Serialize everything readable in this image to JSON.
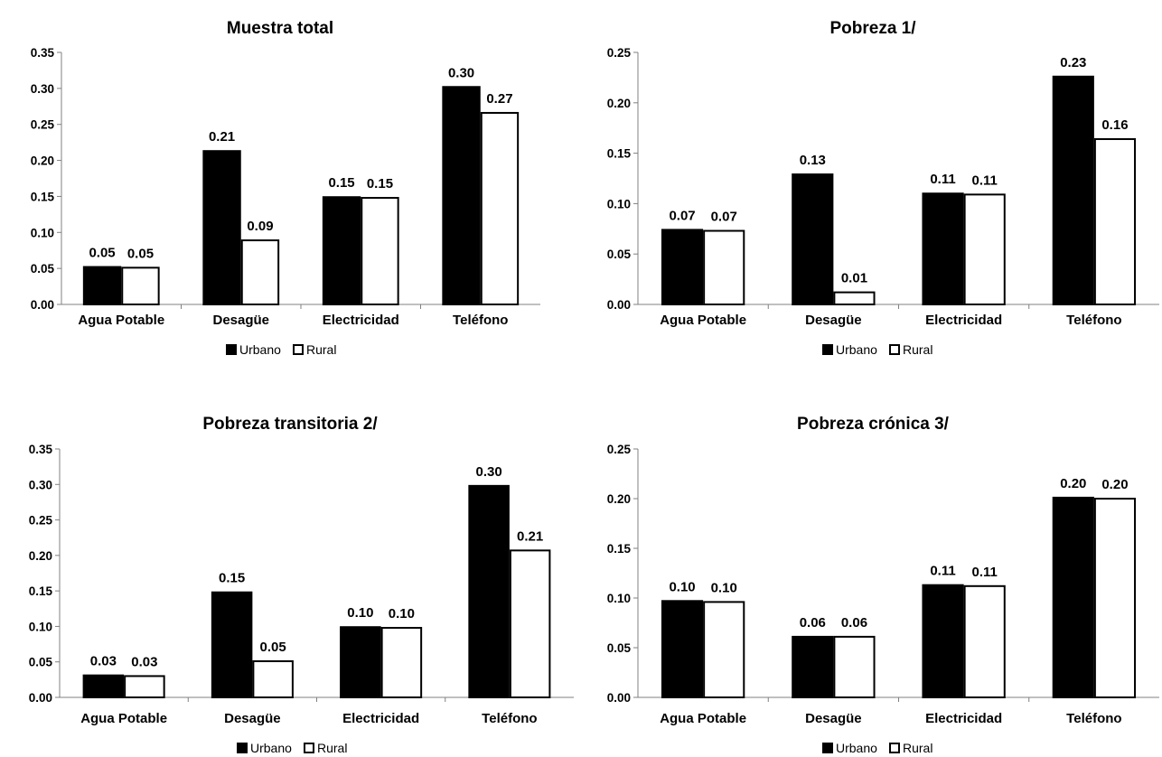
{
  "chart_data": [
    {
      "type": "bar",
      "title": "Muestra total",
      "categories": [
        "Agua Potable",
        "Desagüe",
        "Electricidad",
        "Teléfono"
      ],
      "series": [
        {
          "name": "Urbano",
          "values": [
            0.052,
            0.213,
            0.149,
            0.302
          ],
          "labels": [
            "0.05",
            "0.21",
            "0.15",
            "0.30"
          ]
        },
        {
          "name": "Rural",
          "values": [
            0.051,
            0.089,
            0.148,
            0.266
          ],
          "labels": [
            "0.05",
            "0.09",
            "0.15",
            "0.27"
          ]
        }
      ],
      "ylim": [
        0,
        0.35
      ],
      "yticks": [
        "0.00",
        "0.05",
        "0.10",
        "0.15",
        "0.20",
        "0.25",
        "0.30",
        "0.35"
      ],
      "legend_position": "bottom"
    },
    {
      "type": "bar",
      "title": "Pobreza 1/",
      "categories": [
        "Agua Potable",
        "Desagüe",
        "Electricidad",
        "Teléfono"
      ],
      "series": [
        {
          "name": "Urbano",
          "values": [
            0.074,
            0.129,
            0.11,
            0.226
          ],
          "labels": [
            "0.07",
            "0.13",
            "0.11",
            "0.23"
          ]
        },
        {
          "name": "Rural",
          "values": [
            0.073,
            0.012,
            0.109,
            0.164
          ],
          "labels": [
            "0.07",
            "0.01",
            "0.11",
            "0.16"
          ]
        }
      ],
      "ylim": [
        0,
        0.25
      ],
      "yticks": [
        "0.00",
        "0.05",
        "0.10",
        "0.15",
        "0.20",
        "0.25"
      ],
      "legend_position": "bottom"
    },
    {
      "type": "bar",
      "title": "Pobreza transitoria 2/",
      "categories": [
        "Agua Potable",
        "Desagüe",
        "Electricidad",
        "Teléfono"
      ],
      "series": [
        {
          "name": "Urbano",
          "values": [
            0.031,
            0.148,
            0.099,
            0.298
          ],
          "labels": [
            "0.03",
            "0.15",
            "0.10",
            "0.30"
          ]
        },
        {
          "name": "Rural",
          "values": [
            0.03,
            0.051,
            0.098,
            0.207
          ],
          "labels": [
            "0.03",
            "0.05",
            "0.10",
            "0.21"
          ]
        }
      ],
      "ylim": [
        0,
        0.35
      ],
      "yticks": [
        "0.00",
        "0.05",
        "0.10",
        "0.15",
        "0.20",
        "0.25",
        "0.30",
        "0.35"
      ],
      "legend_position": "bottom"
    },
    {
      "type": "bar",
      "title": "Pobreza crónica 3/",
      "categories": [
        "Agua Potable",
        "Desagüe",
        "Electricidad",
        "Teléfono"
      ],
      "series": [
        {
          "name": "Urbano",
          "values": [
            0.097,
            0.061,
            0.113,
            0.201
          ],
          "labels": [
            "0.10",
            "0.06",
            "0.11",
            "0.20"
          ]
        },
        {
          "name": "Rural",
          "values": [
            0.096,
            0.061,
            0.112,
            0.2
          ],
          "labels": [
            "0.10",
            "0.06",
            "0.11",
            "0.20"
          ]
        }
      ],
      "ylim": [
        0,
        0.25
      ],
      "yticks": [
        "0.00",
        "0.05",
        "0.10",
        "0.15",
        "0.20",
        "0.25"
      ],
      "legend_position": "bottom"
    }
  ],
  "colors": {
    "urbano_fill": "#000000",
    "rural_fill": "#ffffff",
    "bar_stroke": "#000000",
    "axis": "#808080"
  }
}
